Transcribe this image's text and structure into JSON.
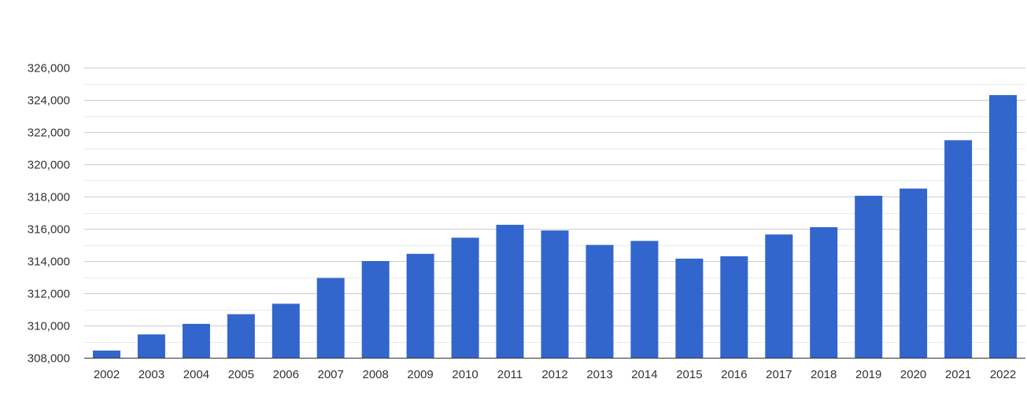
{
  "chart_data": {
    "type": "bar",
    "title": "",
    "xlabel": "",
    "ylabel": "",
    "categories": [
      "2002",
      "2003",
      "2004",
      "2005",
      "2006",
      "2007",
      "2008",
      "2009",
      "2010",
      "2011",
      "2012",
      "2013",
      "2014",
      "2015",
      "2016",
      "2017",
      "2018",
      "2019",
      "2020",
      "2021",
      "2022"
    ],
    "values": [
      308450,
      309450,
      310100,
      310700,
      311350,
      312950,
      314000,
      314450,
      315450,
      316250,
      315900,
      315000,
      315250,
      314150,
      314300,
      315650,
      316100,
      318050,
      318500,
      321500,
      324300
    ],
    "ylim": [
      308000,
      326000
    ],
    "yticks": [
      308000,
      310000,
      312000,
      314000,
      316000,
      318000,
      320000,
      322000,
      324000,
      326000
    ],
    "ytick_labels": [
      "308,000",
      "310,000",
      "312,000",
      "314,000",
      "316,000",
      "318,000",
      "320,000",
      "322,000",
      "324,000",
      "326,000"
    ],
    "grid": true,
    "minor_grid": true,
    "legend": "none",
    "bar_color": "#3366cc"
  }
}
